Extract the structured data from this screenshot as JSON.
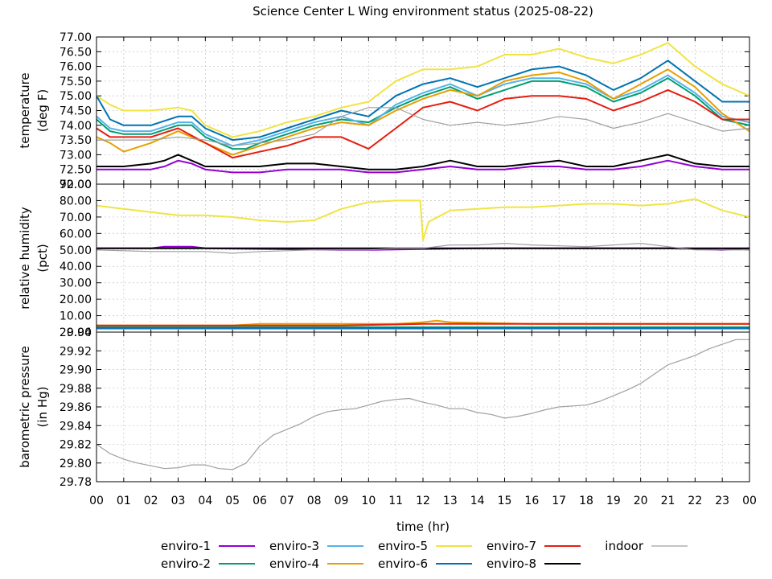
{
  "chart_data": {
    "type": "line",
    "title": "Science Center L Wing environment status (2025-08-22)",
    "xlabel": "time (hr)",
    "x_ticks": [
      "00",
      "01",
      "02",
      "03",
      "04",
      "05",
      "06",
      "07",
      "08",
      "09",
      "10",
      "11",
      "12",
      "13",
      "14",
      "15",
      "16",
      "17",
      "18",
      "19",
      "20",
      "21",
      "22",
      "23",
      "00"
    ],
    "xlim": [
      0,
      24
    ],
    "grid": true,
    "legend_placement": "bottom",
    "legend": [
      {
        "name": "enviro-1",
        "color": "#9400d3"
      },
      {
        "name": "enviro-2",
        "color": "#009e73"
      },
      {
        "name": "enviro-3",
        "color": "#56b4e9"
      },
      {
        "name": "enviro-4",
        "color": "#e69f00"
      },
      {
        "name": "enviro-5",
        "color": "#f0e442"
      },
      {
        "name": "enviro-6",
        "color": "#0072b2"
      },
      {
        "name": "enviro-7",
        "color": "#e51e10"
      },
      {
        "name": "enviro-8",
        "color": "#000000"
      },
      {
        "name": "indoor",
        "color": "#a0a0a0"
      }
    ],
    "panels": [
      {
        "id": "temperature",
        "ylabel_lines": [
          "temperature",
          "(deg F)"
        ],
        "ylim": [
          72.0,
          77.0
        ],
        "y_ticks": [
          "72.00",
          "72.50",
          "73.00",
          "73.50",
          "74.00",
          "74.50",
          "75.00",
          "75.50",
          "76.00",
          "76.50",
          "77.00"
        ],
        "series": [
          {
            "name": "enviro-1",
            "x": [
              0,
              1,
              2,
              2.5,
              3,
              3.5,
              4,
              5,
              6,
              7,
              8,
              9,
              10,
              11,
              12,
              13,
              14,
              15,
              16,
              17,
              18,
              19,
              20,
              20.5,
              21,
              22,
              23,
              24
            ],
            "y": [
              72.5,
              72.5,
              72.5,
              72.6,
              72.8,
              72.7,
              72.5,
              72.4,
              72.4,
              72.5,
              72.5,
              72.5,
              72.4,
              72.4,
              72.5,
              72.6,
              72.5,
              72.5,
              72.6,
              72.6,
              72.5,
              72.5,
              72.6,
              72.7,
              72.8,
              72.6,
              72.5,
              72.5
            ]
          },
          {
            "name": "enviro-2",
            "x": [
              0,
              0.5,
              1,
              2,
              3,
              3.5,
              4,
              5,
              5.5,
              6,
              7,
              8,
              9,
              10,
              11,
              12,
              13,
              14,
              15,
              16,
              17,
              18,
              19,
              20,
              21,
              22,
              23,
              24
            ],
            "y": [
              74.2,
              73.8,
              73.7,
              73.7,
              74.0,
              74.0,
              73.6,
              73.2,
              73.2,
              73.4,
              73.7,
              74.0,
              74.2,
              74.1,
              74.6,
              75.0,
              75.3,
              74.9,
              75.2,
              75.5,
              75.5,
              75.3,
              74.8,
              75.1,
              75.6,
              75.0,
              74.2,
              74.0
            ]
          },
          {
            "name": "enviro-3",
            "x": [
              0,
              0.5,
              1,
              2,
              3,
              3.5,
              4,
              5,
              6,
              7,
              8,
              9,
              10,
              11,
              12,
              13,
              14,
              15,
              16,
              17,
              18,
              19,
              20,
              21,
              22,
              23,
              24
            ],
            "y": [
              74.3,
              73.9,
              73.8,
              73.8,
              74.1,
              74.1,
              73.7,
              73.3,
              73.5,
              73.8,
              74.1,
              74.3,
              74.0,
              74.7,
              75.1,
              75.4,
              75.0,
              75.4,
              75.6,
              75.6,
              75.4,
              74.9,
              75.2,
              75.7,
              75.1,
              74.3,
              74.1
            ]
          },
          {
            "name": "enviro-4",
            "x": [
              0,
              0.5,
              1,
              2,
              3,
              4,
              5,
              6,
              7,
              8,
              9,
              10,
              11,
              12,
              13,
              14,
              15,
              16,
              17,
              18,
              19,
              20,
              21,
              22,
              23,
              24
            ],
            "y": [
              73.6,
              73.4,
              73.1,
              73.4,
              73.8,
              73.4,
              73.0,
              73.3,
              73.6,
              73.9,
              74.1,
              74.0,
              74.5,
              74.9,
              75.2,
              75.0,
              75.5,
              75.7,
              75.8,
              75.5,
              74.9,
              75.4,
              75.9,
              75.3,
              74.4,
              73.8
            ]
          },
          {
            "name": "enviro-5",
            "x": [
              0,
              0.5,
              1,
              2,
              3,
              3.5,
              4,
              5,
              6,
              7,
              8,
              9,
              10,
              11,
              12,
              13,
              14,
              15,
              16,
              17,
              18,
              19,
              20,
              21,
              22,
              23,
              24
            ],
            "y": [
              75.0,
              74.7,
              74.5,
              74.5,
              74.6,
              74.5,
              74.0,
              73.6,
              73.8,
              74.1,
              74.3,
              74.6,
              74.8,
              75.5,
              75.9,
              75.9,
              76.0,
              76.4,
              76.4,
              76.6,
              76.3,
              76.1,
              76.4,
              76.8,
              76.0,
              75.4,
              75.0
            ]
          },
          {
            "name": "enviro-6",
            "x": [
              0,
              0.5,
              1,
              2,
              3,
              3.5,
              4,
              5,
              6,
              7,
              8,
              9,
              10,
              11,
              12,
              13,
              14,
              15,
              16,
              17,
              18,
              19,
              20,
              21,
              22,
              23,
              24
            ],
            "y": [
              75.0,
              74.2,
              74.0,
              74.0,
              74.3,
              74.3,
              73.9,
              73.5,
              73.6,
              73.9,
              74.2,
              74.5,
              74.3,
              75.0,
              75.4,
              75.6,
              75.3,
              75.6,
              75.9,
              76.0,
              75.7,
              75.2,
              75.6,
              76.2,
              75.5,
              74.8,
              74.8
            ]
          },
          {
            "name": "enviro-7",
            "x": [
              0,
              0.5,
              1,
              2,
              3,
              4,
              5,
              6,
              7,
              8,
              9,
              10,
              11,
              12,
              13,
              14,
              15,
              16,
              17,
              18,
              19,
              20,
              21,
              22,
              23,
              24
            ],
            "y": [
              73.9,
              73.6,
              73.6,
              73.6,
              73.9,
              73.4,
              72.9,
              73.1,
              73.3,
              73.6,
              73.6,
              73.2,
              73.9,
              74.6,
              74.8,
              74.5,
              74.9,
              75.0,
              75.0,
              74.9,
              74.5,
              74.8,
              75.2,
              74.8,
              74.2,
              74.2
            ]
          },
          {
            "name": "enviro-8",
            "x": [
              0,
              1,
              2,
              2.5,
              3,
              3.5,
              4,
              5,
              6,
              7,
              8,
              9,
              10,
              11,
              12,
              13,
              14,
              15,
              16,
              17,
              18,
              19,
              20,
              21,
              22,
              23,
              24
            ],
            "y": [
              72.6,
              72.6,
              72.7,
              72.8,
              73.0,
              72.8,
              72.6,
              72.6,
              72.6,
              72.7,
              72.7,
              72.6,
              72.5,
              72.5,
              72.6,
              72.8,
              72.6,
              72.6,
              72.7,
              72.8,
              72.6,
              72.6,
              72.8,
              73.0,
              72.7,
              72.6,
              72.6
            ]
          },
          {
            "name": "indoor",
            "x": [
              0,
              1,
              2,
              3,
              4,
              5,
              6,
              7,
              8,
              9,
              10,
              11,
              12,
              13,
              14,
              15,
              16,
              17,
              18,
              19,
              20,
              21,
              22,
              23,
              24
            ],
            "y": [
              73.5,
              73.5,
              73.5,
              73.6,
              73.5,
              73.3,
              73.4,
              73.5,
              73.7,
              74.3,
              74.6,
              74.6,
              74.2,
              74.0,
              74.1,
              74.0,
              74.1,
              74.3,
              74.2,
              73.9,
              74.1,
              74.4,
              74.1,
              73.8,
              73.9
            ]
          }
        ]
      },
      {
        "id": "humidity",
        "ylabel_lines": [
          "relative humidity",
          "(pct)"
        ],
        "ylim": [
          0,
          90
        ],
        "y_ticks": [
          "0.00",
          "10.00",
          "20.00",
          "30.00",
          "40.00",
          "50.00",
          "60.00",
          "70.00",
          "80.00",
          "90.00"
        ],
        "series": [
          {
            "name": "enviro-1",
            "x": [
              0,
              2,
              2.5,
              3.5,
              4,
              9,
              10,
              14,
              20,
              21,
              23,
              24
            ],
            "y": [
              51,
              51,
              52,
              52,
              51,
              50,
              50,
              51,
              51,
              51,
              50,
              51
            ]
          },
          {
            "name": "enviro-2",
            "x": [
              0,
              6,
              12,
              18,
              24
            ],
            "y": [
              3,
              3,
              3,
              3,
              3
            ]
          },
          {
            "name": "enviro-3",
            "x": [
              0,
              6,
              12,
              18,
              24
            ],
            "y": [
              2,
              2,
              2,
              2,
              2
            ]
          },
          {
            "name": "enviro-4",
            "x": [
              0,
              1,
              2,
              5,
              6,
              8,
              9,
              11,
              12,
              12.5,
              13,
              16,
              20,
              24
            ],
            "y": [
              4,
              4,
              4,
              4,
              5,
              5,
              5,
              5,
              6,
              7,
              6,
              5,
              5,
              5
            ]
          },
          {
            "name": "enviro-5",
            "x": [
              0,
              1,
              2,
              3,
              4,
              5,
              6,
              7,
              8,
              9,
              10,
              11,
              11.9,
              12,
              12.2,
              13,
              14,
              15,
              16,
              17,
              18,
              19,
              20,
              21,
              22,
              23,
              24
            ],
            "y": [
              77,
              75,
              73,
              71,
              71,
              70,
              68,
              67,
              68,
              75,
              79,
              80,
              80,
              56,
              67,
              74,
              75,
              76,
              76,
              77,
              78,
              78,
              77,
              78,
              81,
              74,
              70
            ]
          },
          {
            "name": "enviro-6",
            "x": [
              0,
              6,
              12,
              18,
              24
            ],
            "y": [
              2.5,
              2.5,
              2.5,
              2.5,
              2.5
            ]
          },
          {
            "name": "enviro-7",
            "x": [
              0,
              3,
              6,
              9,
              12,
              15,
              18,
              21,
              24
            ],
            "y": [
              4,
              4,
              4,
              4,
              5,
              5,
              5,
              5,
              5
            ]
          },
          {
            "name": "enviro-8",
            "x": [
              0,
              6,
              12,
              18,
              24
            ],
            "y": [
              51,
              51,
              51,
              51,
              51
            ]
          },
          {
            "name": "indoor",
            "x": [
              0,
              2,
              4,
              5,
              6,
              8,
              10,
              11,
              12,
              13,
              14,
              15,
              16,
              18,
              20,
              21,
              22,
              24
            ],
            "y": [
              50,
              49,
              49,
              48,
              49,
              50,
              50,
              51,
              51,
              53,
              53,
              54,
              53,
              52,
              54,
              52,
              50,
              50
            ]
          }
        ]
      },
      {
        "id": "pressure",
        "ylabel_lines": [
          "barometric pressure",
          "(in Hg)"
        ],
        "ylim": [
          29.78,
          29.94
        ],
        "y_ticks": [
          "29.78",
          "29.80",
          "29.82",
          "29.84",
          "29.86",
          "29.88",
          "29.90",
          "29.92",
          "29.94"
        ],
        "series": [
          {
            "name": "indoor",
            "x": [
              0,
              0.5,
              1,
              1.5,
              2,
              2.5,
              3,
              3.5,
              4,
              4.5,
              5,
              5.5,
              6,
              6.5,
              7,
              7.5,
              8,
              8.5,
              9,
              9.5,
              10,
              10.5,
              11,
              11.5,
              12,
              12.5,
              13,
              13.5,
              14,
              14.5,
              15,
              15.5,
              16,
              16.5,
              17,
              17.5,
              18,
              18.5,
              19,
              19.5,
              20,
              20.5,
              21,
              21.5,
              22,
              22.5,
              23,
              23.5,
              24
            ],
            "y": [
              29.82,
              29.81,
              29.804,
              29.8,
              29.797,
              29.794,
              29.795,
              29.798,
              29.798,
              29.794,
              29.793,
              29.8,
              29.818,
              29.83,
              29.836,
              29.842,
              29.85,
              29.855,
              29.857,
              29.858,
              29.862,
              29.866,
              29.868,
              29.869,
              29.865,
              29.862,
              29.858,
              29.858,
              29.854,
              29.852,
              29.848,
              29.85,
              29.853,
              29.857,
              29.86,
              29.861,
              29.862,
              29.866,
              29.872,
              29.878,
              29.885,
              29.895,
              29.905,
              29.91,
              29.915,
              29.922,
              29.927,
              29.932,
              29.932
            ]
          }
        ]
      }
    ]
  }
}
